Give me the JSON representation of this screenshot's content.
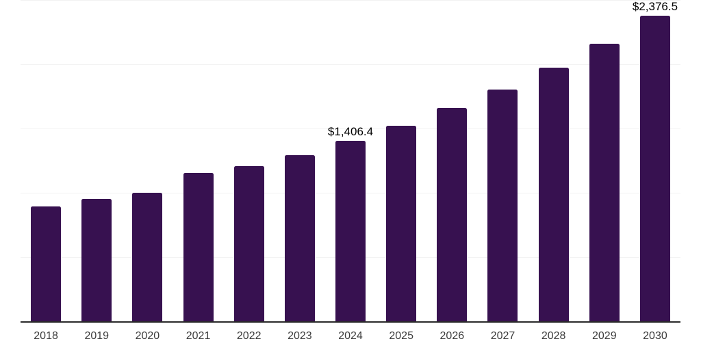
{
  "chart_data": {
    "type": "bar",
    "title": "",
    "xlabel": "",
    "ylabel": "",
    "categories": [
      "2018",
      "2019",
      "2020",
      "2021",
      "2022",
      "2023",
      "2024",
      "2025",
      "2026",
      "2027",
      "2028",
      "2029",
      "2030"
    ],
    "values": [
      894,
      952,
      1000,
      1154,
      1207,
      1293,
      1406.4,
      1521,
      1660,
      1803,
      1973,
      2160,
      2376.5
    ],
    "data_labels": [
      "",
      "",
      "",
      "",
      "",
      "",
      "$1,406.4",
      "",
      "",
      "",
      "",
      "",
      "$2,376.5"
    ],
    "ylim": [
      0,
      2500
    ],
    "gridline_step": 500,
    "grid": "horizontal gridlines only, no y-axis tick labels",
    "legend": "none",
    "colors": {
      "bar": "#371150",
      "axis_line": "#2a2a2a",
      "gridline": "#f2f2f2",
      "x_tick_label": "#3c3c3c",
      "data_label": "#000000",
      "background": "#ffffff"
    }
  }
}
